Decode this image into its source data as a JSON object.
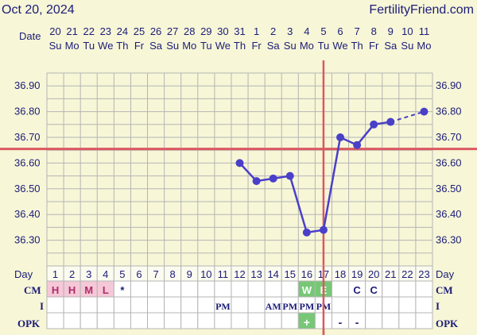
{
  "header": {
    "date": "Oct 20, 2024",
    "site": "FertilityFriend.com"
  },
  "labels": {
    "date": "Date",
    "day": "Day",
    "cm": "CM",
    "i": "I",
    "opk": "OPK"
  },
  "colors": {
    "background": "#f7f6d7",
    "grid": "#b5b5b5",
    "text": "#1c1c78",
    "line": "#4a3fc8",
    "coverline": "#d9595f",
    "cm_fill": "#f5c8d8",
    "cm_text": "#b02c6a",
    "fertile_fill": "#77c777"
  },
  "chart_data": {
    "type": "line",
    "dates": [
      "20",
      "21",
      "22",
      "23",
      "24",
      "25",
      "26",
      "27",
      "28",
      "29",
      "30",
      "31",
      "1",
      "2",
      "3",
      "4",
      "5",
      "6",
      "7",
      "8",
      "9",
      "10",
      "11"
    ],
    "weekdays": [
      "Su",
      "Mo",
      "Tu",
      "We",
      "Th",
      "Fr",
      "Sa",
      "Su",
      "Mo",
      "Tu",
      "We",
      "Th",
      "Fr",
      "Sa",
      "Su",
      "Mo",
      "Tu",
      "We",
      "Th",
      "Fr",
      "Sa",
      "Su",
      "Mo"
    ],
    "days": [
      1,
      2,
      3,
      4,
      5,
      6,
      7,
      8,
      9,
      10,
      11,
      12,
      13,
      14,
      15,
      16,
      17,
      18,
      19,
      20,
      21,
      22,
      23
    ],
    "y_ticks": [
      "36.90",
      "36.80",
      "36.70",
      "36.60",
      "36.50",
      "36.40",
      "36.30"
    ],
    "ylim": [
      36.2,
      36.95
    ],
    "series": [
      {
        "points": [
          [
            12,
            36.6
          ],
          [
            13,
            36.53
          ],
          [
            14,
            36.54
          ],
          [
            15,
            36.55
          ],
          [
            16,
            36.33
          ],
          [
            17,
            36.34
          ],
          [
            18,
            36.7
          ],
          [
            19,
            36.67
          ],
          [
            20,
            36.75
          ],
          [
            21,
            36.76
          ]
        ]
      }
    ],
    "dashed_segment": [
      [
        21,
        36.76
      ],
      [
        23,
        36.8
      ]
    ],
    "coverline": 36.655,
    "ovulation_day": 17,
    "cm": [
      "H",
      "H",
      "M",
      "L",
      "*",
      "",
      "",
      "",
      "",
      "",
      "",
      "",
      "",
      "",
      "",
      "W",
      "E",
      "",
      "C",
      "C",
      "",
      "",
      ""
    ],
    "cm_highlight_days": [
      1,
      2,
      3,
      4
    ],
    "cm_fertile_days": [
      16,
      17
    ],
    "intercourse": [
      "",
      "",
      "",
      "",
      "",
      "",
      "",
      "",
      "",
      "",
      "PM",
      "",
      "",
      "AM",
      "PM",
      "PM",
      "PM",
      "",
      "",
      "",
      "",
      "",
      ""
    ],
    "opk": [
      "",
      "",
      "",
      "",
      "",
      "",
      "",
      "",
      "",
      "",
      "",
      "",
      "",
      "",
      "",
      "+",
      "",
      "-",
      "-",
      "",
      "",
      "",
      ""
    ],
    "opk_fertile_days": [
      16
    ]
  }
}
